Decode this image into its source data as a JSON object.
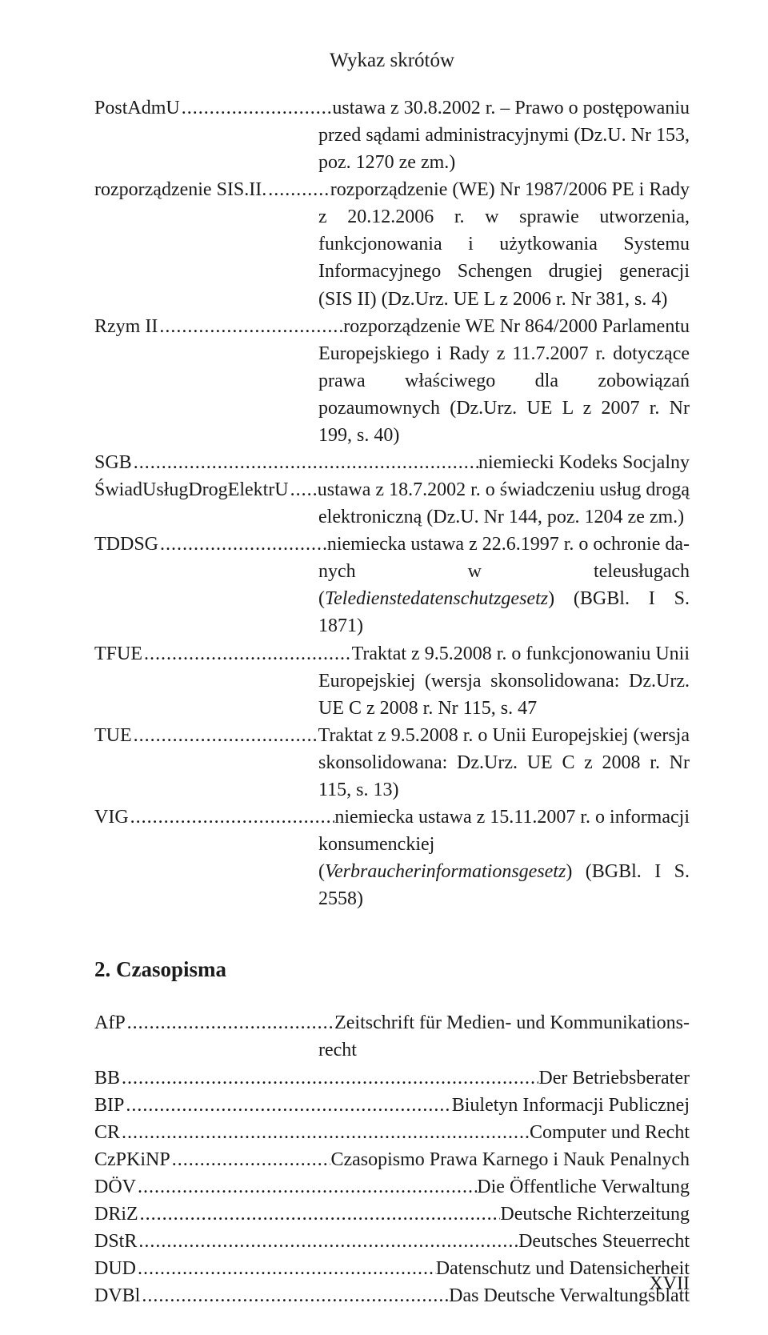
{
  "header": "Wykaz skrótów",
  "section_title": "2.  Czasopisma",
  "page_number": "XVII",
  "entries1": [
    {
      "term": "PostAdmU",
      "first": "ustawa z 30.8.2002 r. – Prawo o postępowaniu",
      "rest": "przed sądami administracyjnymi (Dz.U. Nr 153, poz. 1270 ze zm.)",
      "indent": 280
    },
    {
      "term": "rozporządzenie SIS.II.",
      "first": "rozporządzenie (WE) Nr 1987/2006 PE i Rady",
      "rest": "z 20.12.2006 r. w sprawie utworzenia, funkcjonowania i użytkowania Systemu Informacyjnego Schengen drugiej generacji (SIS II) (Dz.Urz. UE L z 2006 r. Nr 381, s. 4)",
      "indent": 280
    },
    {
      "term": "Rzym II",
      "first": "rozporządzenie WE Nr 864/2000 Parlamentu",
      "rest": "Europejskiego i Rady z 11.7.2007 r. dotyczące prawa właściwego dla zobowiązań pozaumownych (Dz.Urz. UE L z 2007 r. Nr 199, s. 40)",
      "indent": 280
    },
    {
      "term": "SGB",
      "first": " niemiecki Kodeks Socjalny",
      "rest": "",
      "indent": 280
    },
    {
      "term": "ŚwiadUsługDrogElektrU",
      "first": "ustawa z 18.7.2002 r. o świadczeniu usług drogą",
      "rest": "elektroniczną (Dz.U. Nr 144, poz. 1204 ze zm.)",
      "indent": 280
    },
    {
      "term": "TDDSG",
      "first": "niemiecka ustawa z 22.6.1997 r. o ochronie da-",
      "rest": "nych w teleusługach (<i>Teledienstedatenschutzgesetz</i>) (BGBl. I S. 1871)",
      "indent": 280
    },
    {
      "term": "TFUE",
      "first": "Traktat z 9.5.2008 r. o funkcjonowaniu Unii",
      "rest": "Europejskiej (wersja skonsolidowana: Dz.Urz. UE C z 2008 r. Nr 115, s. 47",
      "indent": 280
    },
    {
      "term": "TUE",
      "first": "Traktat z 9.5.2008 r. o Unii Europejskiej (wersja",
      "rest": "skonsolidowana: Dz.Urz. UE C z 2008 r. Nr 115, s. 13)",
      "indent": 280
    },
    {
      "term": "VIG",
      "first": "niemiecka ustawa z 15.11.2007 r. o informacji",
      "rest": "konsumenckiej (<i>Verbraucherinformationsgesetz</i>) (BGBl. I S. 2558)",
      "indent": 280
    }
  ],
  "entries2": [
    {
      "term": "AfP",
      "first": "Zeitschrift für Medien- und Kommunikations-",
      "rest": "recht",
      "indent": 280
    },
    {
      "term": "BB",
      "first": " Der Betriebsberater",
      "rest": "",
      "indent": 280
    },
    {
      "term": "BIP",
      "first": " Biuletyn Informacji Publicznej",
      "rest": "",
      "indent": 280
    },
    {
      "term": "CR",
      "first": " Computer und Recht",
      "rest": "",
      "indent": 280
    },
    {
      "term": "CzPKiNP",
      "first": " Czasopismo Prawa Karnego i Nauk Penalnych",
      "rest": "",
      "indent": 280
    },
    {
      "term": "DÖV",
      "first": " Die Öffentliche Verwaltung",
      "rest": "",
      "indent": 280
    },
    {
      "term": "DRiZ",
      "first": " Deutsche Richterzeitung",
      "rest": "",
      "indent": 280
    },
    {
      "term": "DStR",
      "first": " Deutsches Steuerrecht",
      "rest": "",
      "indent": 280
    },
    {
      "term": "DUD",
      "first": " Datenschutz und Datensicherheit",
      "rest": "",
      "indent": 280
    },
    {
      "term": "DVBl",
      "first": " Das Deutsche Verwaltungsblatt",
      "rest": "",
      "indent": 280
    }
  ],
  "dot_fill": "........................................................................................................................",
  "colors": {
    "text": "#1a1a1a",
    "background": "#ffffff"
  },
  "typography": {
    "body_fontsize": 24,
    "header_fontsize": 25,
    "section_fontsize": 27,
    "font_family": "Times New Roman"
  }
}
